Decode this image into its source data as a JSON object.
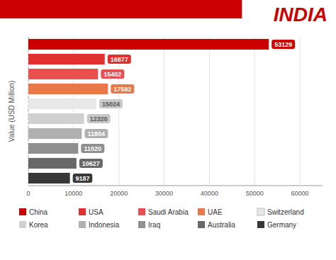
{
  "chart_data": {
    "type": "bar",
    "orientation": "horizontal",
    "title": "INDIA",
    "ylabel": "Value (USD Million)",
    "categories": [
      "China",
      "USA",
      "Saudi Arabia",
      "UAE",
      "Switzerland",
      "Korea",
      "Indonesia",
      "Iraq",
      "Australia",
      "Germany"
    ],
    "values": [
      53129,
      16877,
      15402,
      17592,
      15024,
      12320,
      11804,
      11020,
      10627,
      9187
    ],
    "colors": [
      "#cc0000",
      "#e03030",
      "#e85050",
      "#e8784a",
      "#e8e8e8",
      "#d0d0d0",
      "#b0b0b0",
      "#909090",
      "#686868",
      "#383838"
    ],
    "xlim": [
      0,
      65000
    ],
    "xticks": [
      0,
      10000,
      20000,
      30000,
      40000,
      50000,
      60000
    ],
    "grid": true,
    "data_labels": true,
    "tick_labels": "x",
    "legend": "bottom"
  }
}
